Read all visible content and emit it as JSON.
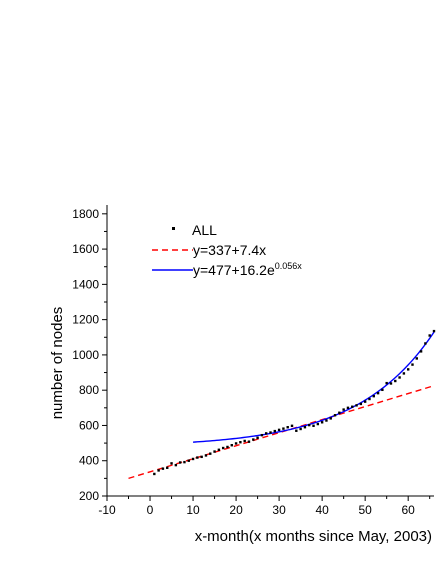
{
  "chart_data": {
    "type": "scatter",
    "title": "",
    "xlabel": "x-month(x months since May, 2003)",
    "ylabel": "number of nodes",
    "xlim": [
      -10,
      66
    ],
    "ylim": [
      200,
      1850
    ],
    "x_ticks": [
      -10,
      0,
      10,
      20,
      30,
      40,
      50,
      60
    ],
    "y_ticks": [
      200,
      400,
      600,
      800,
      1000,
      1200,
      1400,
      1600,
      1800
    ],
    "grid": false,
    "legend_position": "top-left",
    "series": [
      {
        "name": "ALL",
        "kind": "scatter",
        "color": "#000000",
        "points": [
          [
            1,
            325
          ],
          [
            2,
            345
          ],
          [
            3,
            355
          ],
          [
            4,
            360
          ],
          [
            5,
            385
          ],
          [
            6,
            375
          ],
          [
            7,
            390
          ],
          [
            8,
            392
          ],
          [
            9,
            400
          ],
          [
            10,
            410
          ],
          [
            11,
            418
          ],
          [
            12,
            422
          ],
          [
            13,
            430
          ],
          [
            14,
            440
          ],
          [
            15,
            452
          ],
          [
            16,
            462
          ],
          [
            17,
            472
          ],
          [
            18,
            478
          ],
          [
            19,
            488
          ],
          [
            20,
            498
          ],
          [
            21,
            505
          ],
          [
            22,
            512
          ],
          [
            23,
            508
          ],
          [
            24,
            520
          ],
          [
            25,
            530
          ],
          [
            26,
            545
          ],
          [
            27,
            555
          ],
          [
            28,
            560
          ],
          [
            29,
            568
          ],
          [
            30,
            575
          ],
          [
            31,
            582
          ],
          [
            32,
            590
          ],
          [
            33,
            598
          ],
          [
            34,
            570
          ],
          [
            35,
            580
          ],
          [
            36,
            590
          ],
          [
            37,
            602
          ],
          [
            38,
            598
          ],
          [
            39,
            608
          ],
          [
            40,
            618
          ],
          [
            41,
            628
          ],
          [
            42,
            640
          ],
          [
            43,
            658
          ],
          [
            44,
            672
          ],
          [
            45,
            690
          ],
          [
            46,
            700
          ],
          [
            47,
            706
          ],
          [
            48,
            714
          ],
          [
            49,
            722
          ],
          [
            50,
            735
          ],
          [
            51,
            750
          ],
          [
            52,
            766
          ],
          [
            53,
            783
          ],
          [
            54,
            802
          ],
          [
            55,
            840
          ],
          [
            56,
            838
          ],
          [
            57,
            852
          ],
          [
            58,
            872
          ],
          [
            59,
            895
          ],
          [
            60,
            918
          ],
          [
            61,
            945
          ],
          [
            62,
            980
          ],
          [
            63,
            1020
          ],
          [
            64,
            1065
          ],
          [
            65,
            1110
          ],
          [
            66,
            1135
          ]
        ]
      },
      {
        "name": "y=337+7.4x",
        "label_plain": "y=337+7.4x",
        "kind": "line",
        "style": "dashed",
        "color": "#ff0000",
        "intercept": 337,
        "slope": 7.4,
        "x_range": [
          -5,
          66
        ]
      },
      {
        "name": "y=477+16.2e^0.056x",
        "label_base": "y=477+16.2e",
        "label_exponent": "0.056x",
        "kind": "line",
        "style": "solid",
        "color": "#0000ff",
        "a": 477,
        "b": 16.2,
        "k": 0.056,
        "x_range": [
          10,
          66
        ]
      }
    ]
  }
}
